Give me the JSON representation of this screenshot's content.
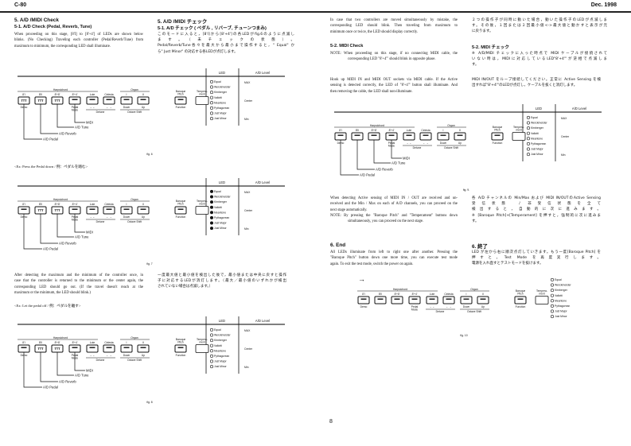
{
  "header": {
    "model": "C-80",
    "date": "Dec. 1998"
  },
  "page_number": "8",
  "left": {
    "title_en": "5.  A/D /MIDI Check",
    "title_jp": "5.  A/D /MIDI チェック",
    "sub_en": "5-1.   A/D Check (Pedal, Reverb, Tune)",
    "sub_jp": "5-1.   A/D チェック ( ペダル , リバーブ, チューンつまみ)",
    "para1_en": [
      "When proceeding on this stage, [8'I] to [8'+4'] of LEDs are shown below",
      "blinks. (No Checking) Traveling each controller (Pedal/Reverb/Tune) from",
      "maximum to minimum, the corresponding LED shall illuminate."
    ],
    "para1_jp": [
      "このモードに入ると，[8'I]から[8'+4']の各LEDがfig.6のように点滅し",
      "ます。（未チェックの状態）。",
      "Pedal/Reverb/Tune各々を最大から最小まで操作すると，\" Equal\" か",
      "ら\" Just Minor\" の対応する各LEDが点灯します。"
    ],
    "example1": "<Ex: Press the Pedal down / 例：ペダルを踏む>",
    "para2_en": [
      "After detecting the maximum and the minimum of the controller once, in",
      "case that the controller is returned to the minimum or the center again, the",
      "corresponding LED should go out. (If the travel doesn't reach at the",
      "maximum or the minimum, the LED should blink.)"
    ],
    "para2_jp": [
      "一度最大値と最小値を検出した後で，最小値または中央に戻すと操作",
      "子に対応するLEDが消灯します。（最大／最小値のいずれかが検出",
      "されていない場合は点滅します。）"
    ],
    "example2": "<Ex: Let the pedal off / 例：ペダルを離す>"
  },
  "right": {
    "para1_en": [
      "In case that two controllers are moved simultaneously by mistake, the",
      "corresponding LED should blink. Then traveling from maximum to",
      "minimum once or twice, the LED should display correctly."
    ],
    "para1_jp": [
      "２つの操作子が同時に動いた場合，動いた操作子のLEDが点滅しま",
      "す。その後，１回または２回最小値<->最大値と動かすと表示が元",
      "に戻ります。"
    ],
    "sub_en": "5-2.   MIDI Check",
    "sub_jp": "5-2.   MIDI チェック",
    "note1_en": [
      "NOTE:  When proceeding on this stage, if no connecting MIDI cable, the",
      "corresponding LED \"8'+4'\" should blink in opposite phase."
    ],
    "note1_jp": [
      "※  A/D/MIDI チェックに入った時点で MIDI ケーブルが接続されて",
      "いない時は，MIDIに対応しているLED\"8'+4'\"が逆相で点滅しま",
      "す。"
    ],
    "para2_en": [
      "Hook up MIDI IN and MIDI OUT sockets via MIDI cable. If the Active",
      "sensing is detected correctly, the LED of \"8'+4'\" button shall illuminate. And",
      "then removing the cable, the LED shall non-illuminate."
    ],
    "para2_jp": [
      "MIDI IN/OUT をループ接続してください。正常に Active Sensing を検",
      "出すれば\"8'+4'\"のLEDが点灯し，ケーブルを抜くと消灯します。"
    ],
    "para3_en": [
      "When detecting Active sensing of MIDI IN / OUT are received and un-",
      "received and the Min / Max on each of A/D channels, you can proceed on the",
      "next stage automatically."
    ],
    "note2_en": [
      "NOTE:  By pressing the \"Baroque Pitch\" and \"Temperament\" buttons down",
      "simultaneously, you can proceed on the next stage."
    ],
    "para3_jp": [
      "各 A/D チャンネルの Min/Max および MIDI IN/OUTのActive Sensing",
      "受信状態 / 非受信状態を全て",
      "検出すると，自動的に次に進みます。",
      "※    [Baroque Pitch]+[Temperament] を押すと，強制的に次に進みま",
      "す。"
    ],
    "end_title_en": "6.  End",
    "end_title_jp": "6.  終了",
    "end_en": [
      "All LEDs illuminate from left to right one after another.  Pressing the",
      "\"Baroque Pitch\" button down one more time, you can execute test mode",
      "again. To exit the test mode, switch the power on again."
    ],
    "end_jp": [
      "LED が左から右に順次点灯していきます。もう一度[Baroque Pitch] を",
      "押すと，Test Mode を再度実行します。",
      "電源を入れ直すとテストモードを抜けます。"
    ],
    "arrow": "→"
  },
  "panel": {
    "led_header": "LED",
    "level_header": "A/D Level",
    "groups": {
      "harpsichord": "Harpsichord",
      "organ": "Organ",
      "detune": "Detune",
      "octave_shift": "Octave Shift"
    },
    "buttons": [
      {
        "top": "8'I",
        "bottom": "Demo"
      },
      {
        "top": "8'II",
        "bottom": ""
      },
      {
        "top": "8'+8'",
        "bottom": ""
      },
      {
        "top": "8'+4'",
        "bottom": "Pedal",
        "bottom2": "Mode"
      },
      {
        "top": "Lute",
        "bottom": "→ ←"
      },
      {
        "top": "Celesta",
        "bottom": "← →"
      },
      {
        "top": "I",
        "bottom": "Down"
      },
      {
        "top": "II",
        "bottom": "Up"
      }
    ],
    "baroque": {
      "top1": "Baroque",
      "top2": "Pitch",
      "bottom": "Function"
    },
    "temperament": {
      "top1": "Tempera-",
      "top2": "ment"
    },
    "leds": [
      "Equal",
      "Werckmeister",
      "Kirnberger",
      "Vallotti",
      "Meantone",
      "Pythagorean",
      "Just Major",
      "Just Minor"
    ],
    "levels": [
      "MAX",
      "Center",
      "Min"
    ],
    "callouts": [
      "MIDI",
      "A/D Tune",
      "A/D Reverb",
      "A/D Pedal"
    ]
  },
  "figures": [
    {
      "caption": "fig. 6",
      "button_states": [
        "blink",
        "blink",
        "blink",
        "lit",
        "lit",
        "lit",
        "lit",
        "lit"
      ],
      "leds_lit": false
    },
    {
      "caption": "fig. 7",
      "button_states": [
        "lit",
        "blink",
        "blink",
        "lit",
        "lit",
        "lit",
        "lit",
        "lit"
      ],
      "leds_lit": true
    },
    {
      "caption": "fig. 8",
      "button_states": [
        "lit",
        "blink",
        "blink",
        "lit",
        "lit",
        "lit",
        "lit",
        "lit"
      ],
      "leds_lit": false
    },
    {
      "caption": "fig. 9.",
      "button_states": [
        "lit",
        "lit",
        "lit",
        "lit",
        "lit",
        "lit",
        "lit",
        "lit"
      ],
      "leds_lit": false
    },
    {
      "caption": "fig. 10",
      "button_states": [
        "lit",
        "lit",
        "lit",
        "lit",
        "lit",
        "lit",
        "lit",
        "lit"
      ],
      "leds_lit": false
    }
  ]
}
